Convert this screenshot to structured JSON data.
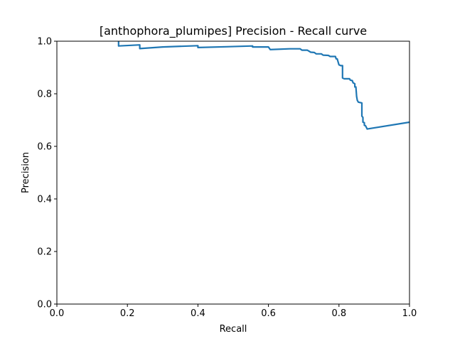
{
  "chart_data": {
    "type": "line",
    "title": "[anthophora_plumipes] Precision - Recall curve",
    "xlabel": "Recall",
    "ylabel": "Precision",
    "xlim": [
      0,
      1
    ],
    "ylim": [
      0,
      1
    ],
    "xticks": [
      "0.0",
      "0.2",
      "0.4",
      "0.6",
      "0.8",
      "1.0"
    ],
    "yticks": [
      "0.0",
      "0.2",
      "0.4",
      "0.6",
      "0.8",
      "1.0"
    ],
    "grid": false,
    "series": [
      {
        "color": "#1f77b4",
        "points": [
          [
            0.175,
            1.0
          ],
          [
            0.175,
            0.982
          ],
          [
            0.235,
            0.986
          ],
          [
            0.235,
            0.972
          ],
          [
            0.3,
            0.978
          ],
          [
            0.4,
            0.983
          ],
          [
            0.4,
            0.976
          ],
          [
            0.48,
            0.979
          ],
          [
            0.555,
            0.982
          ],
          [
            0.555,
            0.978
          ],
          [
            0.6,
            0.978
          ],
          [
            0.605,
            0.968
          ],
          [
            0.66,
            0.971
          ],
          [
            0.69,
            0.971
          ],
          [
            0.695,
            0.966
          ],
          [
            0.71,
            0.966
          ],
          [
            0.72,
            0.958
          ],
          [
            0.73,
            0.957
          ],
          [
            0.735,
            0.952
          ],
          [
            0.75,
            0.952
          ],
          [
            0.755,
            0.947
          ],
          [
            0.77,
            0.946
          ],
          [
            0.775,
            0.942
          ],
          [
            0.79,
            0.942
          ],
          [
            0.792,
            0.933
          ],
          [
            0.795,
            0.933
          ],
          [
            0.8,
            0.91
          ],
          [
            0.805,
            0.907
          ],
          [
            0.81,
            0.907
          ],
          [
            0.81,
            0.86
          ],
          [
            0.815,
            0.857
          ],
          [
            0.83,
            0.857
          ],
          [
            0.832,
            0.852
          ],
          [
            0.838,
            0.85
          ],
          [
            0.84,
            0.842
          ],
          [
            0.845,
            0.838
          ],
          [
            0.845,
            0.826
          ],
          [
            0.848,
            0.826
          ],
          [
            0.85,
            0.79
          ],
          [
            0.852,
            0.775
          ],
          [
            0.855,
            0.768
          ],
          [
            0.865,
            0.765
          ],
          [
            0.865,
            0.715
          ],
          [
            0.868,
            0.71
          ],
          [
            0.868,
            0.692
          ],
          [
            0.872,
            0.69
          ],
          [
            0.872,
            0.68
          ],
          [
            0.875,
            0.679
          ],
          [
            0.88,
            0.666
          ],
          [
            1.0,
            0.692
          ]
        ]
      }
    ]
  }
}
